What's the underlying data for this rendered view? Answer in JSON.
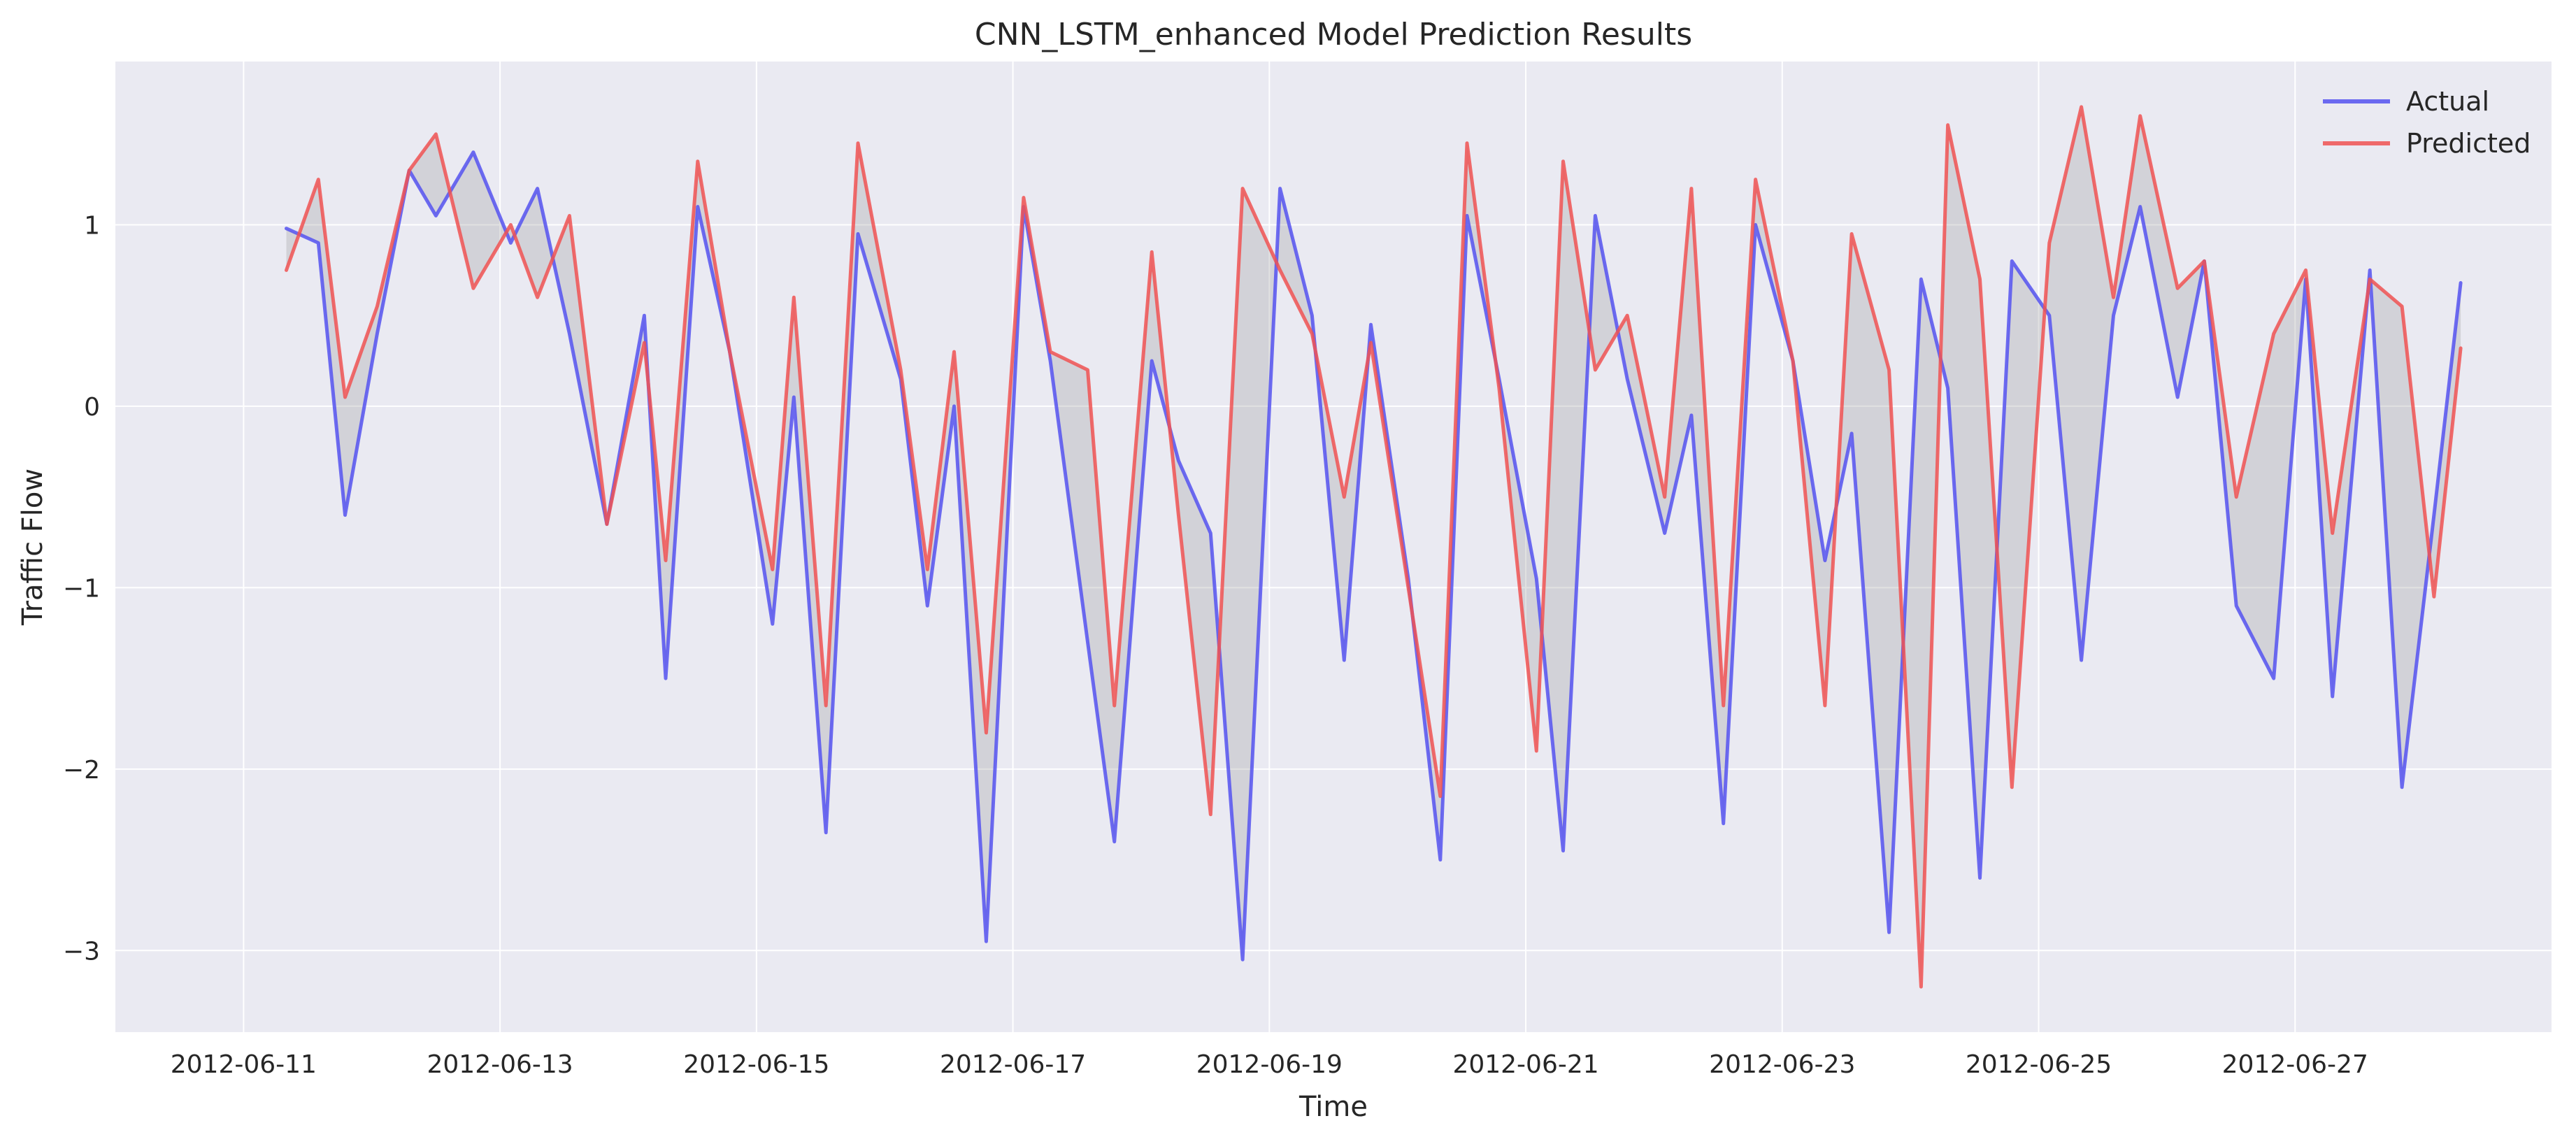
{
  "chart_data": {
    "type": "line",
    "title": "CNN_LSTM_enhanced Model Prediction Results",
    "xlabel": "Time",
    "ylabel": "Traffic Flow",
    "xlim": [
      "2012-06-10",
      "2012-06-29"
    ],
    "ylim": [
      -3.45,
      1.9
    ],
    "x_ticks": [
      "2012-06-11",
      "2012-06-13",
      "2012-06-15",
      "2012-06-17",
      "2012-06-19",
      "2012-06-21",
      "2012-06-23",
      "2012-06-25",
      "2012-06-27"
    ],
    "y_ticks": [
      -3,
      -2,
      -1,
      0,
      1
    ],
    "y_tick_labels": [
      "−3",
      "−2",
      "−1",
      "0",
      "1"
    ],
    "grid": true,
    "legend_position": "top-right",
    "fill_between": true,
    "colors": {
      "background": "#eaeaf2",
      "grid": "#ffffff",
      "actual": "#5552f0",
      "predicted": "#f05252",
      "fill": "#9a9a9a"
    },
    "x": [
      "2012-06-11 08:00",
      "2012-06-11 14:00",
      "2012-06-11 19:00",
      "2012-06-12 01:00",
      "2012-06-12 07:00",
      "2012-06-12 12:00",
      "2012-06-12 19:00",
      "2012-06-13 02:00",
      "2012-06-13 07:00",
      "2012-06-13 13:00",
      "2012-06-13 20:00",
      "2012-06-14 03:00",
      "2012-06-14 07:00",
      "2012-06-14 13:00",
      "2012-06-14 19:00",
      "2012-06-15 03:00",
      "2012-06-15 07:00",
      "2012-06-15 13:00",
      "2012-06-15 19:00",
      "2012-06-16 03:00",
      "2012-06-16 08:00",
      "2012-06-16 13:00",
      "2012-06-16 19:00",
      "2012-06-17 02:00",
      "2012-06-17 07:00",
      "2012-06-17 14:00",
      "2012-06-17 19:00",
      "2012-06-18 02:00",
      "2012-06-18 07:00",
      "2012-06-18 13:00",
      "2012-06-18 19:00",
      "2012-06-19 02:00",
      "2012-06-19 08:00",
      "2012-06-19 14:00",
      "2012-06-19 19:00",
      "2012-06-20 02:00",
      "2012-06-20 08:00",
      "2012-06-20 13:00",
      "2012-06-20 19:00",
      "2012-06-21 02:00",
      "2012-06-21 07:00",
      "2012-06-21 13:00",
      "2012-06-21 19:00",
      "2012-06-22 02:00",
      "2012-06-22 07:00",
      "2012-06-22 13:00",
      "2012-06-22 19:00",
      "2012-06-23 02:00",
      "2012-06-23 08:00",
      "2012-06-23 13:00",
      "2012-06-23 20:00",
      "2012-06-24 02:00",
      "2012-06-24 07:00",
      "2012-06-24 13:00",
      "2012-06-24 19:00",
      "2012-06-25 02:00",
      "2012-06-25 08:00",
      "2012-06-25 14:00",
      "2012-06-25 19:00",
      "2012-06-26 02:00",
      "2012-06-26 07:00",
      "2012-06-26 13:00",
      "2012-06-26 20:00",
      "2012-06-27 02:00",
      "2012-06-27 07:00",
      "2012-06-27 14:00",
      "2012-06-27 20:00",
      "2012-06-28 02:00",
      "2012-06-28 07:00"
    ],
    "series": [
      {
        "name": "Actual",
        "values": [
          0.98,
          0.9,
          -0.6,
          0.4,
          1.3,
          1.05,
          1.4,
          0.9,
          1.2,
          0.4,
          -0.65,
          0.5,
          -1.5,
          1.1,
          0.3,
          -1.2,
          0.05,
          -2.35,
          0.95,
          0.15,
          -1.1,
          0.0,
          -2.95,
          1.1,
          0.25,
          -1.3,
          -2.4,
          0.25,
          -0.3,
          -0.7,
          -3.05,
          1.2,
          0.5,
          -1.4,
          0.45,
          -0.95,
          -2.5,
          1.05,
          0.15,
          -0.95,
          -2.45,
          1.05,
          0.15,
          -0.7,
          -0.05,
          -2.3,
          1.0,
          0.25,
          -0.85,
          -0.15,
          -2.9,
          0.7,
          0.1,
          -2.6,
          0.8,
          0.5,
          -1.4,
          0.5,
          1.1,
          0.05,
          0.8,
          -1.1,
          -1.5,
          0.7,
          -1.6,
          0.75,
          -2.1,
          -0.6,
          0.68
        ]
      },
      {
        "name": "Predicted",
        "values": [
          0.75,
          1.25,
          0.05,
          0.55,
          1.3,
          1.5,
          0.65,
          1.0,
          0.6,
          1.05,
          -0.65,
          0.35,
          -0.85,
          1.35,
          0.3,
          -0.9,
          0.6,
          -1.65,
          1.45,
          0.2,
          -0.9,
          0.3,
          -1.8,
          1.15,
          0.3,
          0.2,
          -1.65,
          0.85,
          -0.6,
          -2.25,
          1.2,
          0.75,
          0.4,
          -0.5,
          0.35,
          -1.0,
          -2.15,
          1.45,
          0.1,
          -1.9,
          1.35,
          0.2,
          0.5,
          -0.5,
          1.2,
          -1.65,
          1.25,
          0.25,
          -1.65,
          0.95,
          0.2,
          -3.2,
          1.55,
          0.7,
          -2.1,
          0.9,
          1.65,
          0.6,
          1.6,
          0.65,
          0.8,
          -0.5,
          0.4,
          0.75,
          -0.7,
          0.7,
          0.55,
          -1.05,
          0.32
        ]
      }
    ]
  }
}
